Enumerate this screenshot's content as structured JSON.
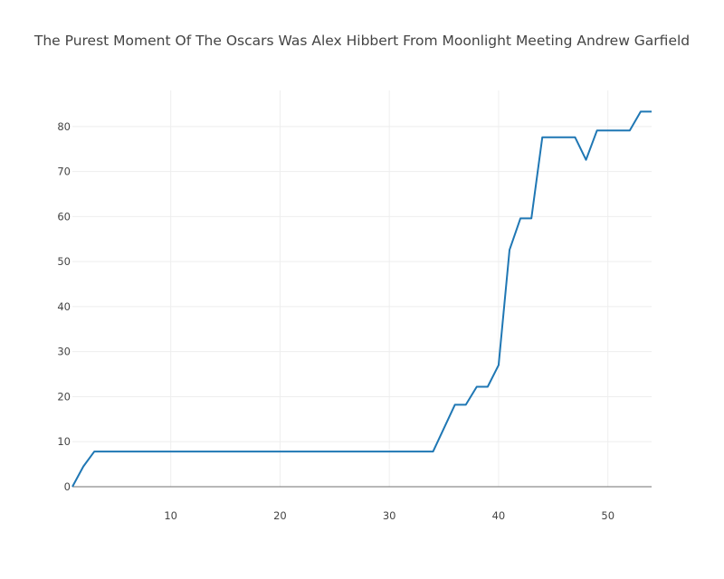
{
  "chart_data": {
    "type": "line",
    "title": "The Purest Moment Of The Oscars Was Alex Hibbert From  Moonlight  Meeting Andrew Garfield",
    "xlabel": "",
    "ylabel": "",
    "xlim": [
      1,
      54
    ],
    "ylim": [
      0,
      88
    ],
    "xticks": [
      10,
      20,
      30,
      40,
      50
    ],
    "yticks": [
      0,
      10,
      20,
      30,
      40,
      50,
      60,
      70,
      80
    ],
    "grid": true,
    "legend": "none",
    "series": [
      {
        "color": "#1f77b4",
        "x": [
          1,
          2,
          3,
          4,
          5,
          6,
          7,
          8,
          9,
          10,
          11,
          12,
          13,
          14,
          15,
          16,
          17,
          18,
          19,
          20,
          21,
          22,
          23,
          24,
          25,
          26,
          27,
          28,
          29,
          30,
          31,
          32,
          33,
          34,
          35,
          36,
          37,
          38,
          39,
          40,
          41,
          42,
          43,
          44,
          45,
          46,
          47,
          48,
          49,
          50,
          51,
          52,
          53,
          54
        ],
        "values": [
          0,
          4.5,
          7.8,
          7.8,
          7.8,
          7.8,
          7.8,
          7.8,
          7.8,
          7.8,
          7.8,
          7.8,
          7.8,
          7.8,
          7.8,
          7.8,
          7.8,
          7.8,
          7.8,
          7.8,
          7.8,
          7.8,
          7.8,
          7.8,
          7.8,
          7.8,
          7.8,
          7.8,
          7.8,
          7.8,
          7.8,
          7.8,
          7.8,
          7.8,
          13,
          18.2,
          18.2,
          22.2,
          22.2,
          27,
          52.6,
          59.6,
          59.6,
          77.6,
          77.6,
          77.6,
          77.6,
          72.6,
          79.1,
          79.1,
          79.1,
          79.1,
          83.3,
          83.3
        ]
      }
    ]
  }
}
